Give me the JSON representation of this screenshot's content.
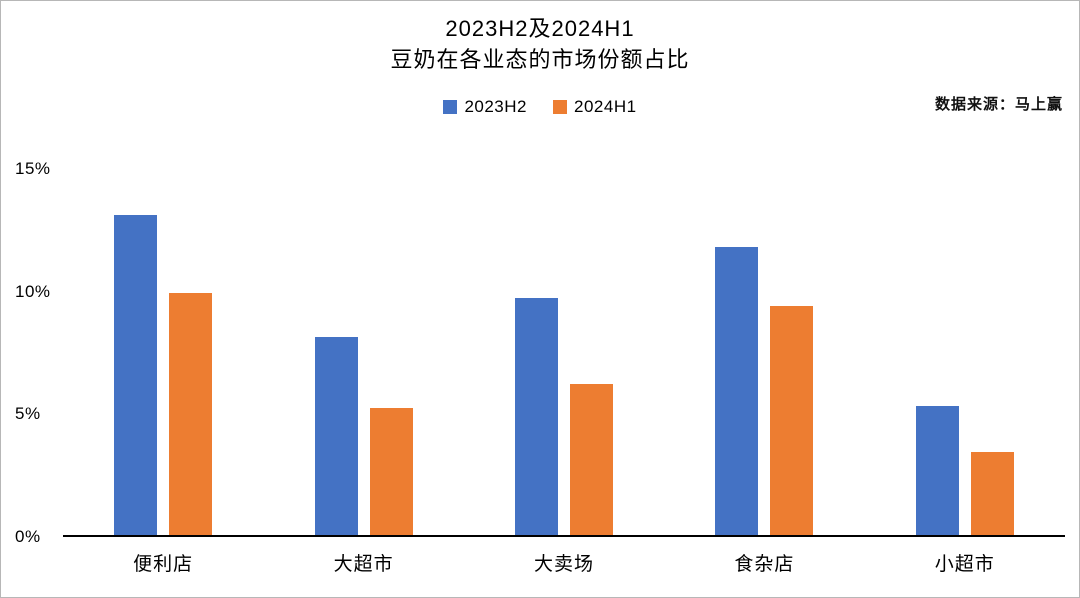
{
  "header": {
    "title_line1": "2023H2及2024H1",
    "title_line2": "豆奶在各业态的市场份额占比",
    "source": "数据来源：马上赢"
  },
  "chart_data": {
    "type": "bar",
    "title": "2023H2及2024H1 豆奶在各业态的市场份额占比",
    "categories": [
      "便利店",
      "大超市",
      "大卖场",
      "食杂店",
      "小超市"
    ],
    "series": [
      {
        "name": "2023H2",
        "color": "#4472C4",
        "values": [
          13.1,
          8.1,
          9.7,
          11.8,
          5.3
        ]
      },
      {
        "name": "2024H1",
        "color": "#ED7D31",
        "values": [
          9.9,
          5.2,
          6.2,
          9.4,
          3.4
        ]
      }
    ],
    "xlabel": "",
    "ylabel": "",
    "ylim": [
      0,
      15
    ],
    "yticks": [
      "0%",
      "5%",
      "10%",
      "15%"
    ],
    "grid": false,
    "legend_position": "top-center"
  }
}
